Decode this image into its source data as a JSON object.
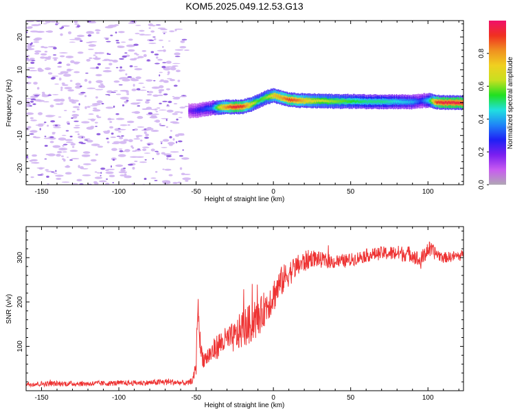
{
  "page_title": "KOM5.2025.049.12.53.G13",
  "colors": {
    "snr_line": "#ee3333",
    "axis": "#000000",
    "noise_light": "#d4b8f2",
    "noise_dark": "#8a55dd",
    "colorbar_stops": [
      "#b0a8b4",
      "#c85cf0",
      "#7b1ff0",
      "#1f20f5",
      "#1f84f7",
      "#20e0e0",
      "#20e020",
      "#c8e020",
      "#f0d020",
      "#f09020",
      "#f03020",
      "#f0106a"
    ]
  },
  "chart_data": [
    {
      "type": "heatmap",
      "title": "KOM5.2025.049.12.53.G13",
      "xlabel": "Height of straight line (km)",
      "ylabel": "Frequency (Hz)",
      "xlim": [
        -160,
        123
      ],
      "ylim": [
        -25,
        25
      ],
      "x_ticks": [
        -150,
        -100,
        -50,
        0,
        50,
        100
      ],
      "y_ticks": [
        -20,
        -10,
        0,
        10,
        20
      ],
      "colorbar": {
        "label": "Normalized spectral amplitude",
        "range": [
          0,
          1
        ],
        "ticks": [
          0.0,
          0.2,
          0.4,
          0.6,
          0.8
        ]
      },
      "noise_region": {
        "x_range": [
          -160,
          -56
        ],
        "freq_range": [
          -25,
          25
        ],
        "amplitude": 0.08
      },
      "ridge": {
        "x": [
          -55,
          -50,
          -45,
          -40,
          -35,
          -30,
          -25,
          -20,
          -15,
          -10,
          -5,
          0,
          5,
          10,
          15,
          20,
          30,
          40,
          50,
          60,
          70,
          80,
          90,
          95,
          100,
          105,
          110,
          115,
          123
        ],
        "frequency": [
          -2.5,
          -2.4,
          -2.0,
          -1.6,
          -1.4,
          -1.3,
          -1.3,
          -1.2,
          -0.6,
          0.5,
          1.6,
          2.2,
          1.5,
          0.9,
          0.7,
          0.6,
          0.5,
          0.4,
          0.4,
          0.3,
          0.3,
          0.3,
          0.2,
          0.5,
          0.7,
          0.2,
          0.0,
          0.0,
          0.0
        ],
        "amplitude": [
          0.18,
          0.25,
          0.3,
          0.35,
          0.7,
          0.85,
          0.95,
          0.9,
          0.7,
          0.55,
          0.6,
          0.75,
          0.8,
          0.9,
          0.85,
          0.75,
          0.65,
          0.6,
          0.55,
          0.5,
          0.5,
          0.45,
          0.4,
          0.3,
          0.45,
          0.9,
          0.95,
          0.95,
          0.95
        ]
      }
    },
    {
      "type": "line",
      "xlabel": "Height of straight line (km)",
      "ylabel": "SNR (v/v)",
      "xlim": [
        -160,
        123
      ],
      "ylim": [
        0,
        370
      ],
      "x_ticks": [
        -150,
        -100,
        -50,
        0,
        50,
        100
      ],
      "y_ticks": [
        100,
        200,
        300
      ],
      "series": [
        {
          "x": [
            -160,
            -140,
            -120,
            -100,
            -80,
            -68,
            -60,
            -55,
            -52,
            -50,
            -49,
            -47,
            -45,
            -40,
            -35,
            -30,
            -25,
            -20,
            -15,
            -10,
            -5,
            0,
            5,
            10,
            15,
            20,
            25,
            30,
            40,
            50,
            60,
            70,
            80,
            90,
            95,
            100,
            105,
            110,
            123
          ],
          "y": [
            15,
            16,
            16,
            17,
            18,
            20,
            18,
            17,
            25,
            55,
            200,
            90,
            70,
            85,
            105,
            115,
            120,
            140,
            150,
            160,
            190,
            215,
            245,
            265,
            280,
            290,
            300,
            295,
            290,
            295,
            305,
            310,
            310,
            308,
            290,
            320,
            310,
            300,
            305
          ],
          "noise": [
            6,
            6,
            6,
            6,
            6,
            8,
            6,
            6,
            8,
            20,
            30,
            25,
            20,
            25,
            30,
            30,
            35,
            45,
            45,
            40,
            40,
            40,
            35,
            30,
            25,
            25,
            20,
            18,
            15,
            15,
            15,
            15,
            18,
            18,
            20,
            20,
            15,
            12,
            12
          ]
        }
      ]
    }
  ]
}
